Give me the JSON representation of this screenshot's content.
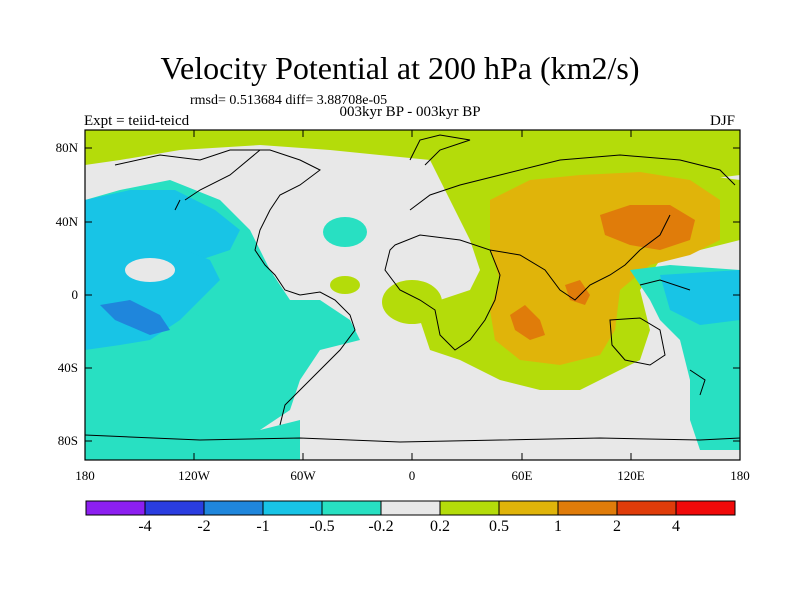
{
  "title": "Velocity Potential at 200 hPa (km2/s)",
  "stats": "rmsd= 0.513684 diff= 3.88708e-05",
  "period": "003kyr BP - 003kyr BP",
  "experiment": "Expt = teiid-teicd",
  "season": "DJF",
  "lat_labels": [
    "80N",
    "40N",
    "0",
    "40S",
    "80S"
  ],
  "lon_labels": [
    "180",
    "120W",
    "60W",
    "0",
    "60E",
    "120E",
    "180"
  ],
  "colorbar": {
    "labels": [
      "-4",
      "-2",
      "-1",
      "-0.5",
      "-0.2",
      "0.2",
      "0.5",
      "1",
      "2",
      "4"
    ],
    "colors": [
      "#8c1ff0",
      "#2a3de0",
      "#1f86dc",
      "#18c4e6",
      "#28e0c2",
      "#e8e8e8",
      "#b4dc0a",
      "#e0b40a",
      "#e07c0a",
      "#e03c0a",
      "#f00a0a"
    ]
  }
}
